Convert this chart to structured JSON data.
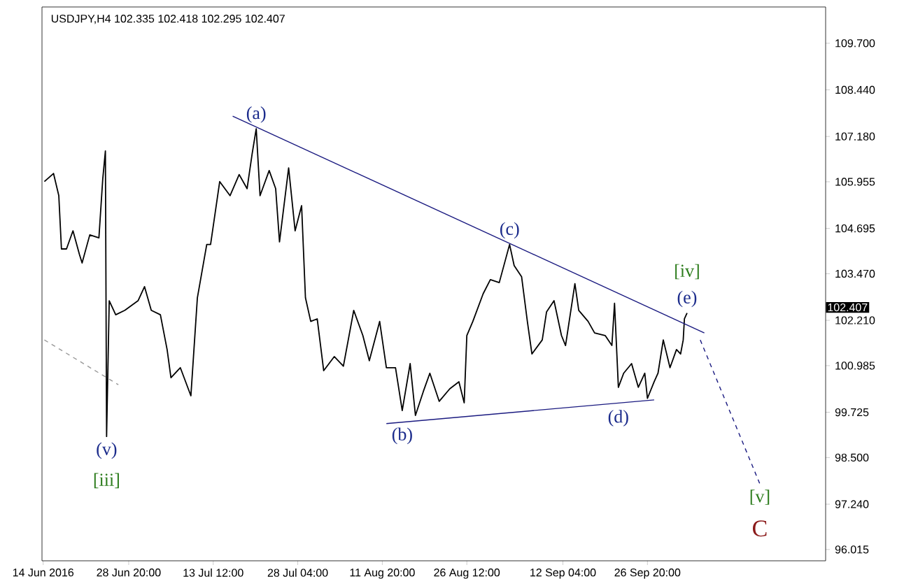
{
  "chart_data": {
    "type": "line",
    "title": "USDJPY,H4  102.335 102.418 102.295 102.407",
    "xlim": [
      "2016-06-13T19:00",
      "2016-10-27T18:00"
    ],
    "ylim": [
      95.71,
      110.68
    ],
    "xticks": [
      {
        "value": "2016-06-14T00:00",
        "label": "14 Jun 2016"
      },
      {
        "value": "2016-06-28T20:00",
        "label": "28 Jun 20:00"
      },
      {
        "value": "2016-07-13T12:00",
        "label": "13 Jul 12:00"
      },
      {
        "value": "2016-07-28T04:00",
        "label": "28 Jul 04:00"
      },
      {
        "value": "2016-08-11T20:00",
        "label": "11 Aug 20:00"
      },
      {
        "value": "2016-08-26T12:00",
        "label": "26 Aug 12:00"
      },
      {
        "value": "2016-09-12T04:00",
        "label": "12 Sep 04:00"
      },
      {
        "value": "2016-09-26T20:00",
        "label": "26 Sep 20:00"
      }
    ],
    "yticks": [
      {
        "value": 109.7,
        "label": "109.700"
      },
      {
        "value": 108.44,
        "label": "108.440"
      },
      {
        "value": 107.18,
        "label": "107.180"
      },
      {
        "value": 105.955,
        "label": "105.955"
      },
      {
        "value": 104.695,
        "label": "104.695"
      },
      {
        "value": 103.47,
        "label": "103.470"
      },
      {
        "value": 102.21,
        "label": "102.210"
      },
      {
        "value": 100.985,
        "label": "100.985"
      },
      {
        "value": 99.725,
        "label": "99.725"
      },
      {
        "value": 98.5,
        "label": "98.500"
      },
      {
        "value": 97.24,
        "label": "97.240"
      },
      {
        "value": 96.015,
        "label": "96.015"
      }
    ],
    "series": [
      {
        "color": "#000000",
        "x": [
          "2016-06-14T05:00",
          "2016-06-15T19:00",
          "2016-06-16T17:00",
          "2016-06-17T04:00",
          "2016-06-18T01:00",
          "2016-06-19T04:00",
          "2016-06-20T07:00",
          "2016-06-20T18:00",
          "2016-06-22T02:00",
          "2016-06-23T16:00",
          "2016-06-24T08:00",
          "2016-06-24T19:00",
          "2016-06-25T00:00",
          "2016-06-25T11:00",
          "2016-06-26T14:00",
          "2016-06-28T04:00",
          "2016-06-30T11:00",
          "2016-07-01T14:00",
          "2016-07-02T18:00",
          "2016-07-04T08:00",
          "2016-07-05T12:00",
          "2016-07-06T04:00",
          "2016-07-07T19:00",
          "2016-07-09T15:00",
          "2016-07-10T18:00",
          "2016-07-12T09:00",
          "2016-07-13T01:00",
          "2016-07-14T15:00",
          "2016-07-16T10:00",
          "2016-07-18T00:00",
          "2016-07-19T09:00",
          "2016-07-20T06:00",
          "2016-07-20T23:00",
          "2016-07-21T15:00",
          "2016-07-23T05:00",
          "2016-07-24T08:00",
          "2016-07-25T00:00",
          "2016-07-26T14:00",
          "2016-07-27T17:00",
          "2016-07-28T20:00",
          "2016-07-29T12:00",
          "2016-07-30T10:00",
          "2016-07-31T13:00",
          "2016-08-01T16:00",
          "2016-08-03T12:00",
          "2016-08-05T02:00",
          "2016-08-06T21:00",
          "2016-08-08T11:00",
          "2016-08-09T14:00",
          "2016-08-11T09:00",
          "2016-08-12T13:00",
          "2016-08-14T03:00",
          "2016-08-15T07:00",
          "2016-08-16T16:00",
          "2016-08-17T14:00",
          "2016-08-18T23:00",
          "2016-08-20T02:00",
          "2016-08-21T17:00",
          "2016-08-23T13:00",
          "2016-08-25T03:00",
          "2016-08-26T01:00",
          "2016-08-26T12:00",
          "2016-08-27T13:00",
          "2016-08-29T08:00",
          "2016-08-30T14:00",
          "2016-09-01T03:00",
          "2016-09-02T22:00",
          "2016-09-03T17:00",
          "2016-09-05T00:00",
          "2016-09-06T00:00",
          "2016-09-06T19:00",
          "2016-09-08T14:00",
          "2016-09-09T08:00",
          "2016-09-10T15:00",
          "2016-09-11T22:00",
          "2016-09-12T15:00",
          "2016-09-14T06:00",
          "2016-09-14T22:00",
          "2016-09-16T13:00",
          "2016-09-17T16:00",
          "2016-09-19T12:00",
          "2016-09-20T16:00",
          "2016-09-21T03:00",
          "2016-09-21T19:00",
          "2016-09-22T17:00",
          "2016-09-24T02:00",
          "2016-09-25T06:00",
          "2016-09-26T09:00",
          "2016-09-26T20:00",
          "2016-09-28T00:00",
          "2016-09-28T16:00",
          "2016-09-29T14:00",
          "2016-09-30T18:00",
          "2016-10-01T21:00",
          "2016-10-02T14:00",
          "2016-10-03T01:00",
          "2016-10-03T06:00",
          "2016-10-03T17:00"
        ],
        "values": [
          105.96,
          106.18,
          105.58,
          104.14,
          104.14,
          104.63,
          103.99,
          103.76,
          104.52,
          104.44,
          106.03,
          106.79,
          99.07,
          102.74,
          102.36,
          102.48,
          102.74,
          103.12,
          102.48,
          102.36,
          101.42,
          100.66,
          100.93,
          100.17,
          102.82,
          104.26,
          104.26,
          105.96,
          105.58,
          106.15,
          105.77,
          106.71,
          107.39,
          105.58,
          106.26,
          105.77,
          104.33,
          106.33,
          104.63,
          105.31,
          102.82,
          102.18,
          102.25,
          100.85,
          101.23,
          100.97,
          102.48,
          101.8,
          101.12,
          102.18,
          100.93,
          100.93,
          99.77,
          101.04,
          99.64,
          100.29,
          100.78,
          100.02,
          100.36,
          100.55,
          99.98,
          101.8,
          102.18,
          102.93,
          103.31,
          103.23,
          104.26,
          103.69,
          103.39,
          102.18,
          101.3,
          101.68,
          102.44,
          102.74,
          101.8,
          101.53,
          103.2,
          102.48,
          102.18,
          101.87,
          101.8,
          101.53,
          102.67,
          100.4,
          100.78,
          101.04,
          100.4,
          100.78,
          100.1,
          100.55,
          100.78,
          101.68,
          100.93,
          101.42,
          101.3,
          101.68,
          102.25,
          102.407
        ]
      },
      {
        "type": "line",
        "color": "#1a1a80",
        "x": [
          "2016-07-16T21:00",
          "2016-10-06T17:00"
        ],
        "values": [
          107.73,
          101.87
        ]
      },
      {
        "type": "line",
        "color": "#1a1a80",
        "x": [
          "2016-08-12T13:00",
          "2016-09-28T00:00"
        ],
        "values": [
          99.42,
          100.06
        ]
      },
      {
        "type": "line",
        "color": "#1a1a80",
        "line_style": "dashed",
        "x": [
          "2016-10-06T00:00",
          "2016-10-16T08:00"
        ],
        "values": [
          101.68,
          97.79
        ]
      },
      {
        "type": "line",
        "color": "#999999",
        "line_style": "dashed",
        "x": [
          "2016-06-14T05:00",
          "2016-06-27T01:00"
        ],
        "values": [
          101.68,
          100.47
        ]
      }
    ],
    "annotations": [
      {
        "text": "(a)",
        "x": "2016-07-20T23:00",
        "y": 107.39
      },
      {
        "text": "(b)",
        "x": "2016-08-15T07:00",
        "y": 99.77
      },
      {
        "text": "(c)",
        "x": "2016-09-02T22:00",
        "y": 104.26
      },
      {
        "text": "(d)",
        "x": "2016-09-21T19:00",
        "y": 100.4
      },
      {
        "text": "(e)",
        "x": "2016-10-03T17:00",
        "y": 102.407
      },
      {
        "text": "[iv]",
        "x": "2016-10-03T17:00",
        "y": 102.407
      },
      {
        "text": "(v)",
        "x": "2016-06-25T00:00",
        "y": 99.07
      },
      {
        "text": "[iii]",
        "x": "2016-06-25T00:00",
        "y": 99.07
      },
      {
        "text": "[v]",
        "x": "2016-10-16T08:00",
        "y": 97.79
      },
      {
        "text": "C",
        "x": "2016-10-16T08:00",
        "y": 97.79
      },
      "102.407"
    ]
  }
}
